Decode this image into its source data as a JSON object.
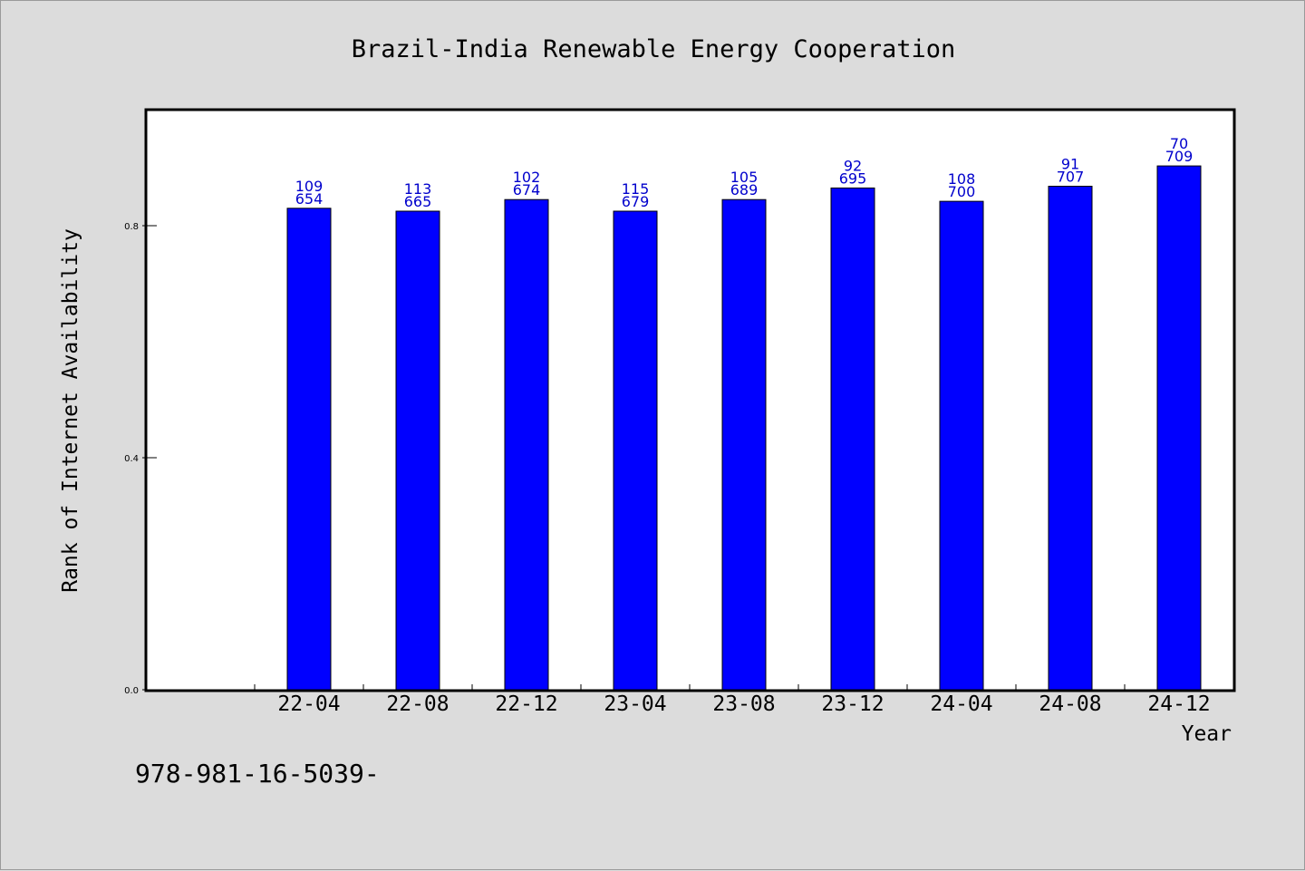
{
  "chart_data": {
    "type": "bar",
    "title": "Brazil-India Renewable Energy Cooperation",
    "xlabel": "Year",
    "ylabel": "Rank of Internet Availability",
    "categories": [
      "22-04",
      "22-08",
      "22-12",
      "23-04",
      "23-08",
      "23-12",
      "24-04",
      "24-08",
      "24-12"
    ],
    "values": [
      0.83,
      0.825,
      0.845,
      0.825,
      0.845,
      0.865,
      0.842,
      0.868,
      0.903
    ],
    "label_top": [
      "109",
      "113",
      "102",
      "115",
      "105",
      "92",
      "108",
      "91",
      "70"
    ],
    "label_bottom": [
      "654",
      "665",
      "674",
      "679",
      "689",
      "695",
      "700",
      "707",
      "709"
    ],
    "yticks": [
      "0.0",
      "0.4",
      "0.8"
    ],
    "ylim": [
      0,
      1.0
    ],
    "bar_color": "#0000ff",
    "label_color": "#0000cc",
    "grid": false,
    "legend": "none"
  },
  "footer": "978-981-16-5039-"
}
